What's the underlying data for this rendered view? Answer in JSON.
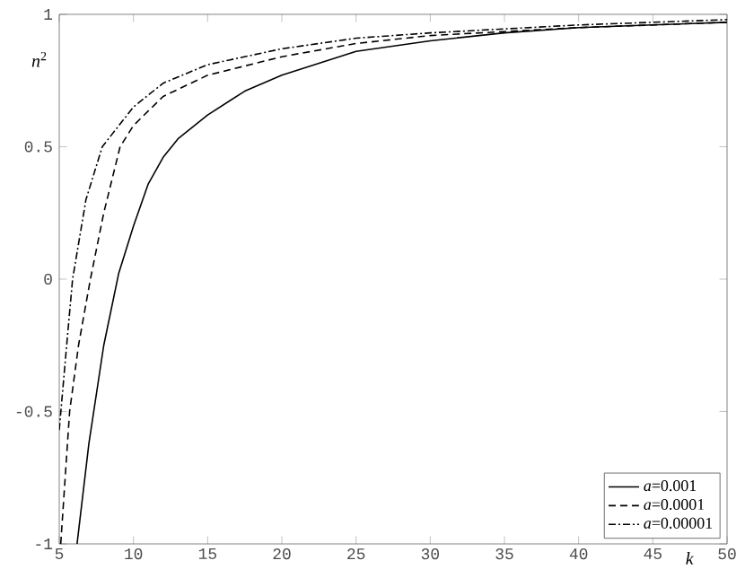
{
  "chart_data": {
    "type": "line",
    "xlabel": "*k*",
    "ylabel": "*n*$^{2}$",
    "xlim": [
      5,
      50
    ],
    "ylim": [
      -1,
      1
    ],
    "xticks": [
      5,
      10,
      15,
      20,
      25,
      30,
      35,
      40,
      45,
      50
    ],
    "yticks": [
      -1,
      -0.5,
      0,
      0.5,
      1
    ],
    "legend": "bottom right",
    "grid": false,
    "series": [
      {
        "name": "*a*=0.001",
        "color": "#000000",
        "line_style": "solid",
        "x": [
          6.2,
          7,
          8,
          9,
          10,
          11,
          12,
          13,
          15,
          17.5,
          20,
          25,
          30,
          35,
          40,
          45,
          50
        ],
        "values": [
          -1,
          -0.62,
          -0.25,
          0.02,
          0.2,
          0.36,
          0.46,
          0.53,
          0.62,
          0.71,
          0.77,
          0.86,
          0.9,
          0.93,
          0.95,
          0.96,
          0.97
        ]
      },
      {
        "name": "*a*=0.0001",
        "color": "#000000",
        "line_style": "dashed",
        "x": [
          5.1,
          5.7,
          6.3,
          7.1,
          8,
          9.1,
          10,
          12,
          15,
          20,
          25,
          30,
          40,
          50
        ],
        "values": [
          -1,
          -0.5,
          -0.25,
          0,
          0.25,
          0.5,
          0.58,
          0.69,
          0.77,
          0.84,
          0.89,
          0.92,
          0.95,
          0.97
        ]
      },
      {
        "name": "*a*=0.00001",
        "color": "#000000",
        "line_style": "dashdot",
        "x": [
          5,
          5.5,
          5.9,
          6.8,
          7.9,
          10,
          12,
          15,
          20,
          25,
          30,
          40,
          50
        ],
        "values": [
          -0.57,
          -0.25,
          0,
          0.3,
          0.5,
          0.65,
          0.74,
          0.81,
          0.87,
          0.91,
          0.93,
          0.96,
          0.98
        ]
      }
    ]
  }
}
